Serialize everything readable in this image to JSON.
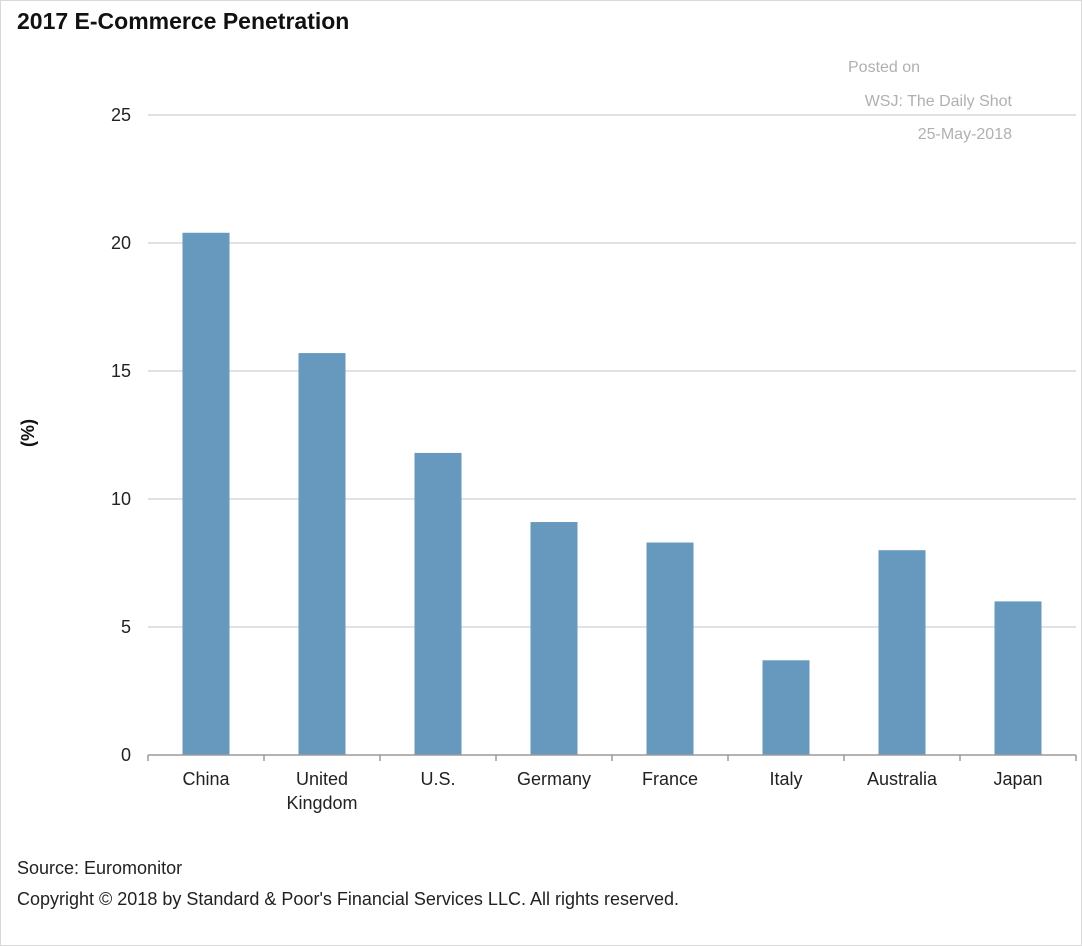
{
  "chart_data": {
    "type": "bar",
    "title": "2017 E-Commerce Penetration",
    "xlabel": "",
    "ylabel": "(%)",
    "categories": [
      "China",
      "United Kingdom",
      "U.S.",
      "Germany",
      "France",
      "Italy",
      "Australia",
      "Japan"
    ],
    "category_lines": [
      [
        "China"
      ],
      [
        "United",
        "Kingdom"
      ],
      [
        "U.S."
      ],
      [
        "Germany"
      ],
      [
        "France"
      ],
      [
        "Italy"
      ],
      [
        "Australia"
      ],
      [
        "Japan"
      ]
    ],
    "values": [
      20.4,
      15.7,
      11.8,
      9.1,
      8.3,
      3.7,
      8.0,
      6.0
    ],
    "ylim": [
      0,
      25
    ],
    "yticks": [
      0,
      5,
      10,
      15,
      20,
      25
    ],
    "grid": true,
    "bar_color": "#6699bd",
    "grid_color": "#d9d9d9"
  },
  "watermark": {
    "line1": "Posted on",
    "line2": "WSJ: The Daily Shot",
    "line3": "25-May-2018"
  },
  "footer": {
    "source": "Source: Euromonitor",
    "copyright": "Copyright © 2018 by Standard & Poor's Financial Services LLC. All rights reserved."
  }
}
